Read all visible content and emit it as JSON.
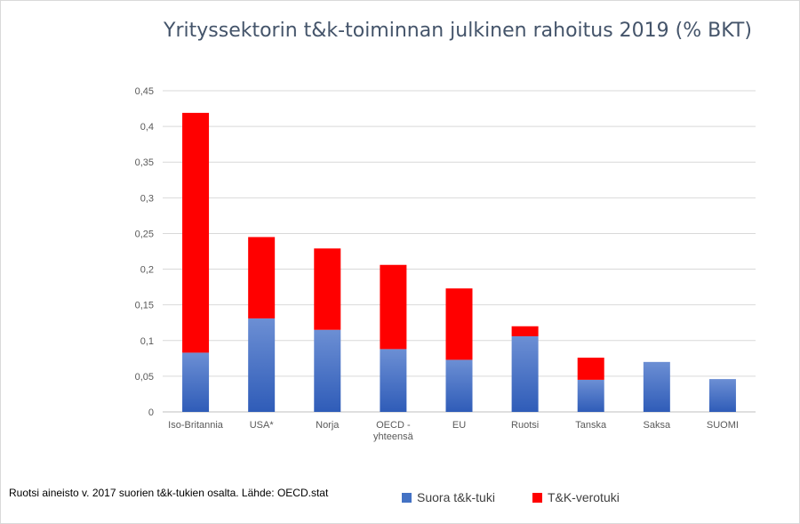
{
  "chart_data": {
    "type": "bar",
    "stacked": true,
    "title": "Yrityssektorin t&k-toiminnan julkinen rahoitus 2019 (% BKT)",
    "categories": [
      "Iso-Britannia",
      "USA*",
      "Norja",
      "OECD - yhteensä",
      "EU",
      "Ruotsi",
      "Tanska",
      "Saksa",
      "SUOMI"
    ],
    "category_lines": [
      [
        "Iso-Britannia"
      ],
      [
        "USA*"
      ],
      [
        "Norja"
      ],
      [
        "OECD -",
        "yhteensä"
      ],
      [
        "EU"
      ],
      [
        "Ruotsi"
      ],
      [
        "Tanska"
      ],
      [
        "Saksa"
      ],
      [
        "SUOMI"
      ]
    ],
    "series": [
      {
        "name": "Suora t&k-tuki",
        "color": "#4472c4",
        "values": [
          0.083,
          0.131,
          0.115,
          0.088,
          0.073,
          0.106,
          0.045,
          0.07,
          0.046
        ]
      },
      {
        "name": "T&K-verotuki",
        "color": "#ff0000",
        "values": [
          0.336,
          0.114,
          0.114,
          0.118,
          0.1,
          0.014,
          0.031,
          0,
          0
        ]
      }
    ],
    "ylim": [
      0,
      0.45
    ],
    "yticks": [
      0,
      0.05,
      0.1,
      0.15,
      0.2,
      0.25,
      0.3,
      0.35,
      0.4,
      0.45
    ],
    "ytick_labels": [
      "0",
      "0,05",
      "0,1",
      "0,15",
      "0,2",
      "0,25",
      "0,3",
      "0,35",
      "0,4",
      "0,45"
    ],
    "grid": true,
    "legend_position": "bottom"
  },
  "footnote": "Ruotsi aineisto v. 2017 suorien t&k-tukien osalta. Lähde: OECD.stat"
}
